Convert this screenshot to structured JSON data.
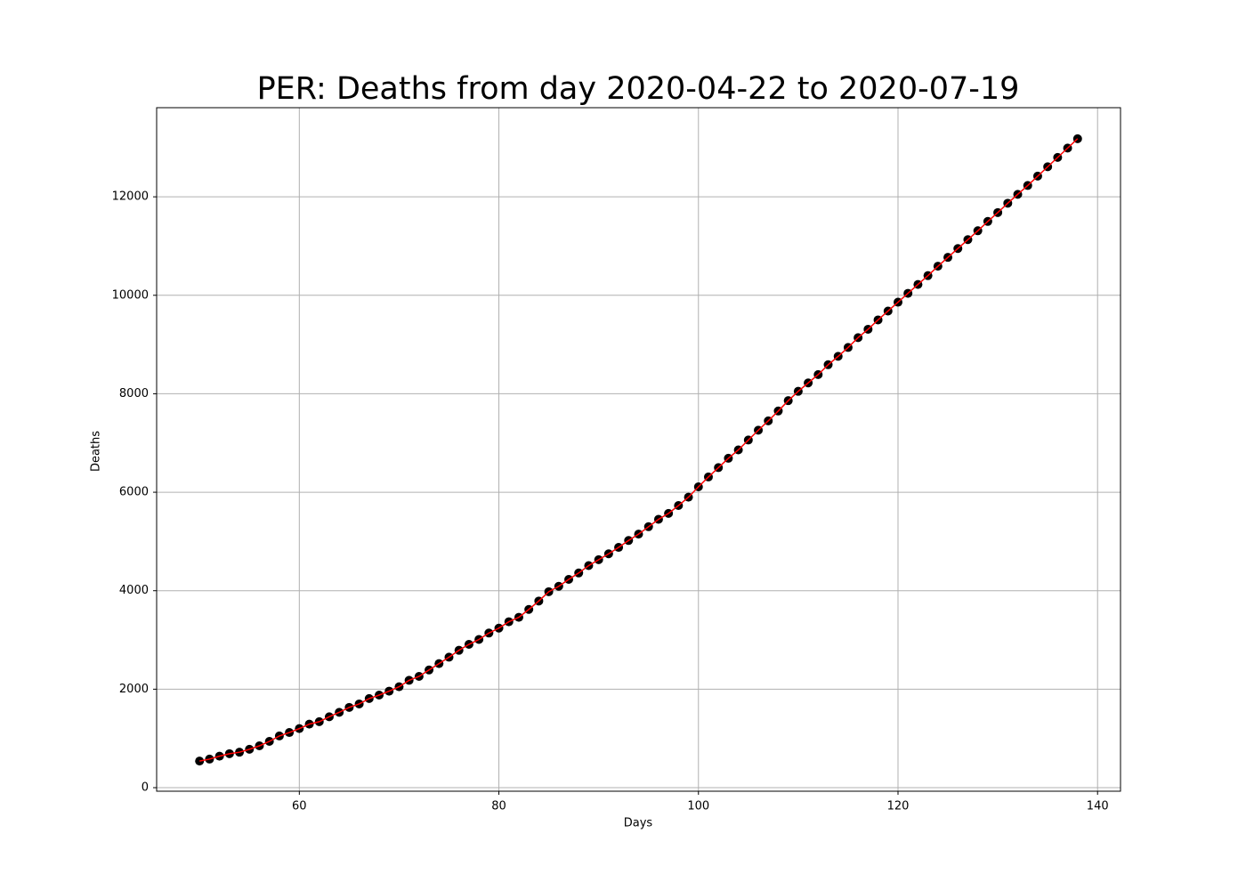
{
  "chart_data": {
    "type": "line",
    "title": "PER: Deaths from day 2020-04-22 to 2020-07-19",
    "x_label": "Days",
    "y_label": "Deaths",
    "x": [
      50,
      51,
      52,
      53,
      54,
      55,
      56,
      57,
      58,
      59,
      60,
      61,
      62,
      63,
      64,
      65,
      66,
      67,
      68,
      69,
      70,
      71,
      72,
      73,
      74,
      75,
      76,
      77,
      78,
      79,
      80,
      81,
      82,
      83,
      84,
      85,
      86,
      87,
      88,
      89,
      90,
      91,
      92,
      93,
      94,
      95,
      96,
      97,
      98,
      99,
      100,
      101,
      102,
      103,
      104,
      105,
      106,
      107,
      108,
      109,
      110,
      111,
      112,
      113,
      114,
      115,
      116,
      117,
      118,
      119,
      120,
      121,
      122,
      123,
      124,
      125,
      126,
      127,
      128,
      129,
      130,
      131,
      132,
      133,
      134,
      135,
      136,
      137,
      138
    ],
    "series": [
      {
        "marker_color": "#000000",
        "line_color": "#ff0000",
        "values": [
          540,
          580,
          640,
          690,
          720,
          780,
          850,
          940,
          1050,
          1120,
          1200,
          1290,
          1340,
          1440,
          1530,
          1630,
          1700,
          1810,
          1880,
          1960,
          2050,
          2180,
          2260,
          2390,
          2520,
          2650,
          2790,
          2910,
          3010,
          3140,
          3240,
          3370,
          3460,
          3620,
          3790,
          3980,
          4090,
          4230,
          4360,
          4510,
          4630,
          4750,
          4880,
          5020,
          5150,
          5300,
          5450,
          5570,
          5730,
          5900,
          6110,
          6310,
          6500,
          6690,
          6860,
          7060,
          7260,
          7450,
          7650,
          7860,
          8050,
          8220,
          8390,
          8590,
          8760,
          8940,
          9140,
          9310,
          9500,
          9680,
          9860,
          10040,
          10220,
          10400,
          10590,
          10770,
          10950,
          11130,
          11310,
          11500,
          11680,
          11870,
          12050,
          12230,
          12420,
          12610,
          12800,
          12990,
          13180
        ]
      }
    ],
    "xlim": [
      45.7,
      142.3
    ],
    "ylim": [
      -72,
      13810
    ],
    "xticks": [
      60,
      80,
      100,
      120,
      140
    ],
    "yticks": [
      0,
      2000,
      4000,
      6000,
      8000,
      10000,
      12000
    ],
    "grid": true
  }
}
